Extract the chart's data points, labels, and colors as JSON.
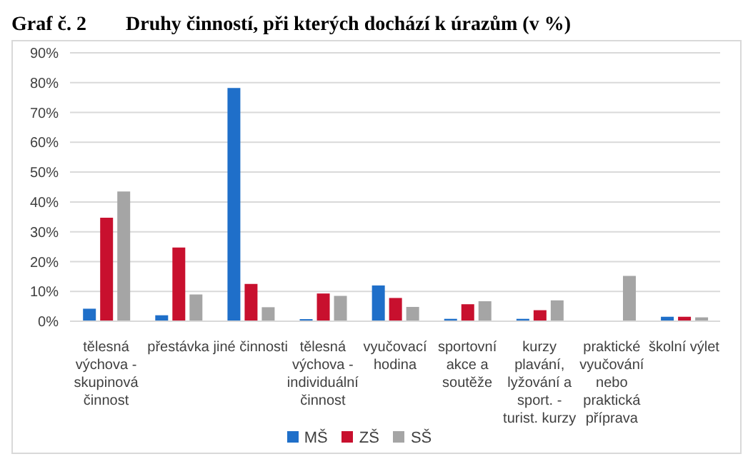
{
  "chart_data": {
    "type": "bar",
    "title": "Druhy činností, při kterých dochází k úrazům (v %)",
    "annotations": [
      "Graf č. 2"
    ],
    "categories": [
      "tělesná výchova - skupinová činnost",
      "přestávka",
      "jiné činnosti",
      "tělesná výchova - individuální činnost",
      "vyučovací hodina",
      "sportovní akce a soutěže",
      "kurzy plavání, lyžování a sport. - turist. kurzy",
      "praktické vyučování nebo praktická příprava",
      "školní výlet"
    ],
    "series": [
      {
        "name": "MŠ",
        "color": "#1f6fc9",
        "values": [
          4.2,
          2,
          78.2,
          0.7,
          12,
          0.8,
          0.8,
          null,
          1.5
        ]
      },
      {
        "name": "ZŠ",
        "color": "#c8102e",
        "values": [
          34.7,
          24.7,
          12.5,
          9.3,
          7.8,
          5.7,
          3.7,
          null,
          1.5
        ]
      },
      {
        "name": "SŠ",
        "color": "#a5a5a5",
        "values": [
          43.5,
          9,
          4.7,
          8.5,
          4.8,
          6.7,
          7,
          15.2,
          1.3
        ]
      }
    ],
    "ylim": [
      0,
      90
    ],
    "yticks": [
      {
        "value": 0,
        "label": "0%"
      },
      {
        "value": 10,
        "label": "10%"
      },
      {
        "value": 20,
        "label": "20%"
      },
      {
        "value": 30,
        "label": "30%"
      },
      {
        "value": 40,
        "label": "40%"
      },
      {
        "value": 50,
        "label": "50%"
      },
      {
        "value": 60,
        "label": "60%"
      },
      {
        "value": 70,
        "label": "70%"
      },
      {
        "value": 80,
        "label": "80%"
      },
      {
        "value": 90,
        "label": "90%"
      }
    ],
    "grid": "y",
    "legend": "bottom"
  }
}
